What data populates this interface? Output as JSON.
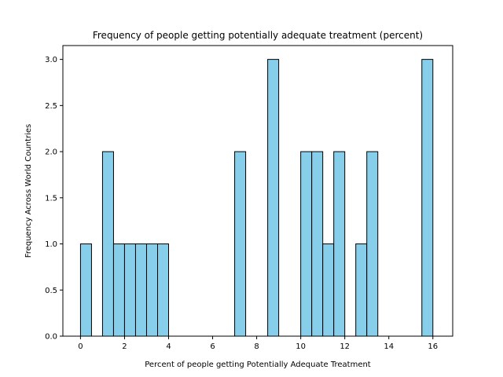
{
  "chart_data": {
    "type": "bar",
    "title": "Frequency of people getting potentially adequate treatment (percent)",
    "xlabel": "Percent of people getting Potentially Adequate Treatment",
    "ylabel": "Frequency Across World Countries",
    "xlim": [
      -0.8,
      16.9
    ],
    "ylim": [
      0,
      3.15
    ],
    "grid": false,
    "bar_color": "#87ceeb",
    "edge_color": "#000000",
    "x_ticks": [
      0,
      2,
      4,
      6,
      8,
      10,
      12,
      14,
      16
    ],
    "x_tick_labels": [
      "0",
      "2",
      "4",
      "6",
      "8",
      "10",
      "12",
      "14",
      "16"
    ],
    "y_ticks": [
      0,
      0.5,
      1.0,
      1.5,
      2.0,
      2.5,
      3.0
    ],
    "y_tick_labels": [
      "0.0",
      "0.5",
      "1.0",
      "1.5",
      "2.0",
      "2.5",
      "3.0"
    ],
    "bins": [
      {
        "start": 0.0,
        "end": 0.5,
        "count": 1
      },
      {
        "start": 1.0,
        "end": 1.5,
        "count": 2
      },
      {
        "start": 1.5,
        "end": 2.0,
        "count": 1
      },
      {
        "start": 2.0,
        "end": 2.5,
        "count": 1
      },
      {
        "start": 2.5,
        "end": 3.0,
        "count": 1
      },
      {
        "start": 3.0,
        "end": 3.5,
        "count": 1
      },
      {
        "start": 3.5,
        "end": 4.0,
        "count": 1
      },
      {
        "start": 7.0,
        "end": 7.5,
        "count": 2
      },
      {
        "start": 8.5,
        "end": 9.0,
        "count": 3
      },
      {
        "start": 10.0,
        "end": 10.5,
        "count": 2
      },
      {
        "start": 10.5,
        "end": 11.0,
        "count": 2
      },
      {
        "start": 11.0,
        "end": 11.5,
        "count": 1
      },
      {
        "start": 11.5,
        "end": 12.0,
        "count": 2
      },
      {
        "start": 12.5,
        "end": 13.0,
        "count": 1
      },
      {
        "start": 13.0,
        "end": 13.5,
        "count": 2
      },
      {
        "start": 15.5,
        "end": 16.0,
        "count": 3
      }
    ]
  }
}
